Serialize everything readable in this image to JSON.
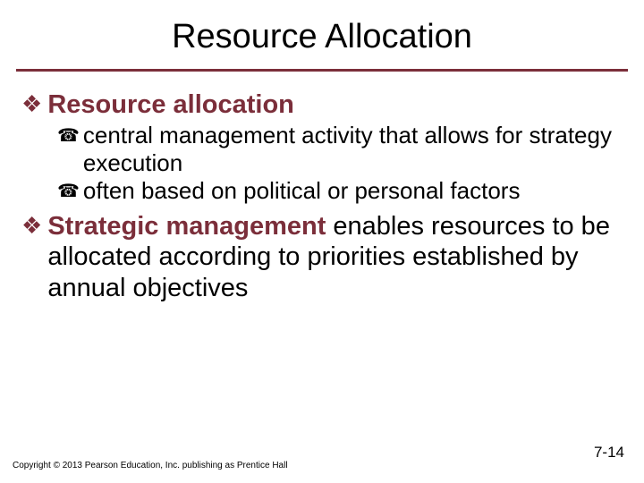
{
  "colors": {
    "accent": "#7b2e3a",
    "text": "#000000",
    "background": "#ffffff"
  },
  "typography": {
    "title_fontsize": 38,
    "l1_fontsize": 29,
    "l2_fontsize": 26,
    "footer_fontsize": 10,
    "pagenum_fontsize": 17,
    "font_family": "Arial"
  },
  "title": "Resource Allocation",
  "bullets": [
    {
      "level": 1,
      "lead": "Resource allocation",
      "rest": "",
      "children": [
        {
          "level": 2,
          "text": "central management activity that allows for strategy execution"
        },
        {
          "level": 2,
          "text": "often based on political or personal factors"
        }
      ]
    },
    {
      "level": 1,
      "lead": "Strategic management",
      "rest": " enables resources to be allocated according to priorities established by annual objectives",
      "children": []
    }
  ],
  "footer": "Copyright © 2013 Pearson Education, Inc. publishing as Prentice Hall",
  "page_number": "7-14",
  "icons": {
    "level1": "❖",
    "level2": "☎"
  }
}
